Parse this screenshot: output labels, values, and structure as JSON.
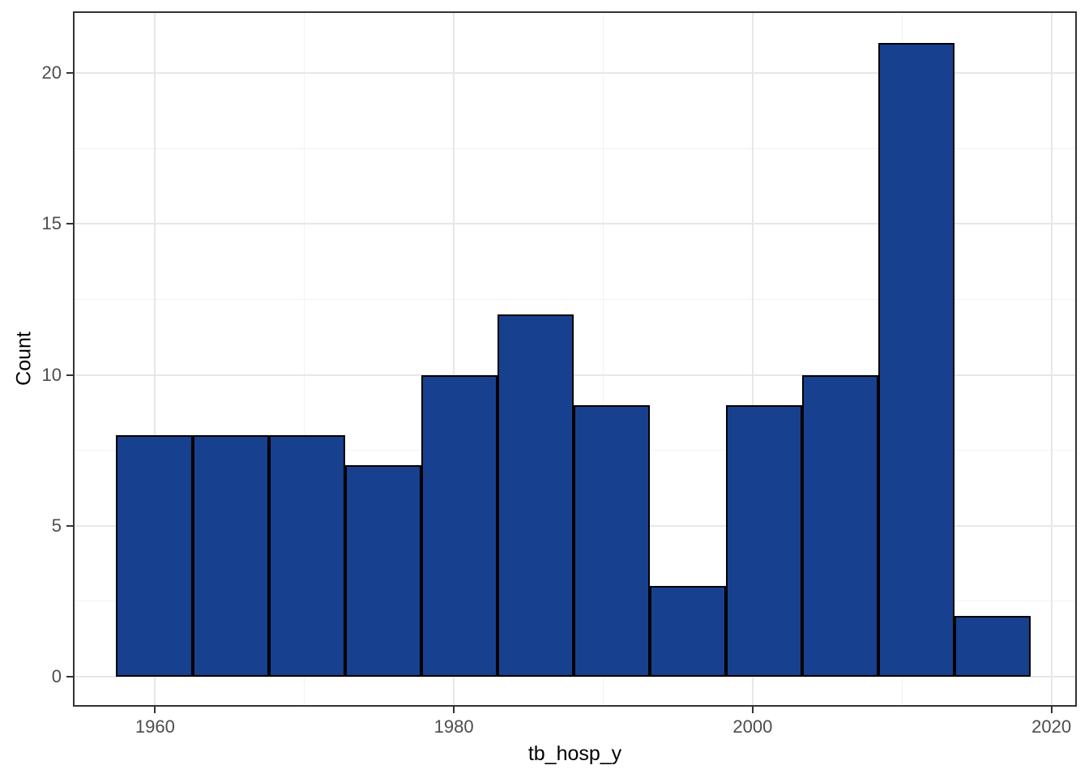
{
  "chart_data": {
    "type": "histogram",
    "title": "",
    "xlabel": "tb_hosp_y",
    "ylabel": "Count",
    "bin_edges": [
      1957.4,
      1962.5,
      1967.6,
      1972.7,
      1977.8,
      1982.9,
      1988.0,
      1993.1,
      1998.2,
      2003.3,
      2008.4,
      2013.5,
      2018.6
    ],
    "counts": [
      8,
      8,
      8,
      7,
      10,
      12,
      9,
      3,
      9,
      10,
      21,
      2
    ],
    "x_ticks": [
      1960,
      1980,
      2000,
      2020
    ],
    "x_minor_breaks": [
      1970,
      1990,
      2010
    ],
    "y_ticks": [
      0,
      5,
      10,
      15,
      20
    ],
    "y_minor_breaks": [
      2.5,
      7.5,
      12.5,
      17.5
    ],
    "xlim": [
      1954.5,
      2021.7
    ],
    "ylim": [
      -1.0,
      22.05
    ],
    "grid": true,
    "legend": "none",
    "bar_fill": "#17418f",
    "bar_stroke": "#000000",
    "major_grid_color": "#e7e7e7",
    "minor_grid_color": "#f2f2f2",
    "panel_border_color": "#333333",
    "tick_label_color": "#4d4d4d",
    "axis_title_color": "#000000",
    "background_color": "#ffffff"
  }
}
